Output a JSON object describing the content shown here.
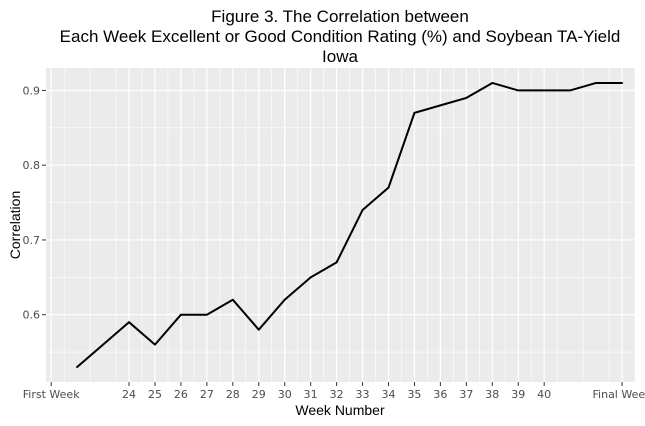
{
  "chart_data": {
    "type": "line",
    "title_lines": [
      "Figure 3. The Correlation between",
      "Each Week Excellent or Good Condition Rating (%) and Soybean TA-Yield",
      "Iowa"
    ],
    "xlabel": "Week Number",
    "ylabel": "Correlation",
    "x_tick_labels": [
      "First Week",
      "24",
      "25",
      "26",
      "27",
      "28",
      "29",
      "30",
      "31",
      "32",
      "33",
      "34",
      "35",
      "36",
      "37",
      "38",
      "39",
      "40",
      "Final Week"
    ],
    "x_tick_positions": [
      21,
      24,
      25,
      26,
      27,
      28,
      29,
      30,
      31,
      32,
      33,
      34,
      35,
      36,
      37,
      38,
      39,
      40,
      43
    ],
    "y_ticks": [
      0.6,
      0.7,
      0.8,
      0.9
    ],
    "y_tick_labels": [
      "0.6",
      "0.7",
      "0.8",
      "0.9"
    ],
    "xlim": [
      20.8,
      43.5
    ],
    "ylim": [
      0.51,
      0.93
    ],
    "grid": true,
    "panel_background": "#ebebeb",
    "grid_color": "#ffffff",
    "line_color": "#000000",
    "series": [
      {
        "x": [
          22,
          23,
          24,
          25,
          26,
          27,
          28,
          29,
          30,
          31,
          32,
          33,
          34,
          35,
          36,
          37,
          38,
          39,
          40,
          41,
          42,
          43
        ],
        "y": [
          0.53,
          0.56,
          0.59,
          0.56,
          0.6,
          0.6,
          0.62,
          0.58,
          0.62,
          0.65,
          0.67,
          0.74,
          0.77,
          0.87,
          0.88,
          0.89,
          0.91,
          0.9,
          0.9,
          0.9,
          0.91,
          0.91
        ]
      }
    ]
  }
}
